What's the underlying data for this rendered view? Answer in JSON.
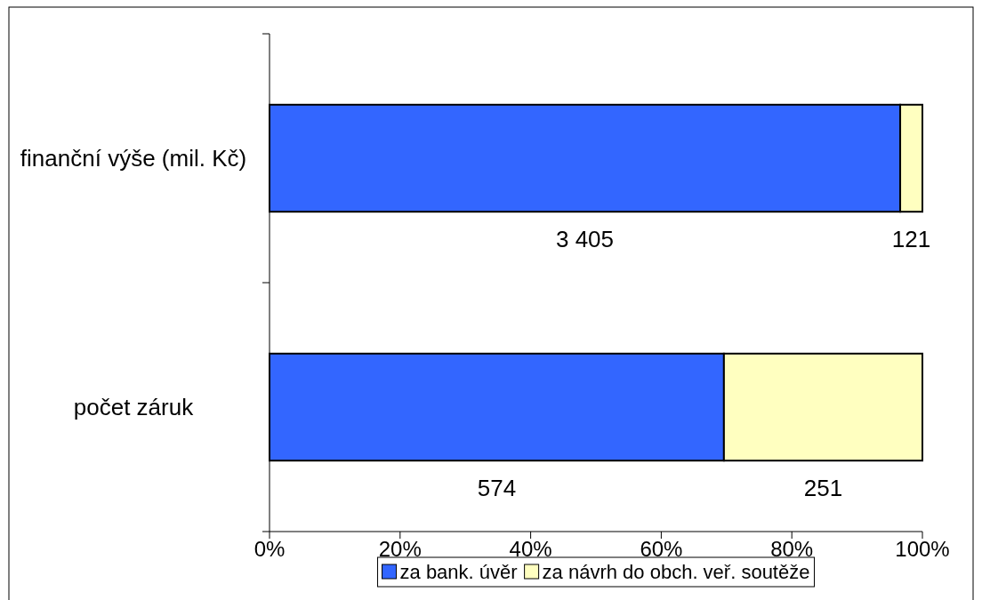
{
  "chart_data": {
    "type": "bar",
    "orientation": "horizontal",
    "stacked": true,
    "categories": [
      "finanční výše (mil. Kč)",
      "počet záruk"
    ],
    "series": [
      {
        "name": "za bank. úvěr",
        "color": "#3366ff",
        "values": [
          96.6,
          69.6
        ]
      },
      {
        "name": "za návrh do obch. veř. soutěže",
        "color": "#ffffc0",
        "values": [
          3.4,
          30.4
        ]
      }
    ],
    "annotations": [
      "3 405",
      "121",
      "574",
      "251"
    ],
    "xlim": [
      0,
      100
    ],
    "xticks": [
      {
        "value": 0,
        "label": "0%"
      },
      {
        "value": 20,
        "label": "20%"
      },
      {
        "value": 40,
        "label": "40%"
      },
      {
        "value": 60,
        "label": "60%"
      },
      {
        "value": 80,
        "label": "80%"
      },
      {
        "value": 100,
        "label": "100%"
      }
    ],
    "grid": false,
    "legend": "bottom"
  }
}
